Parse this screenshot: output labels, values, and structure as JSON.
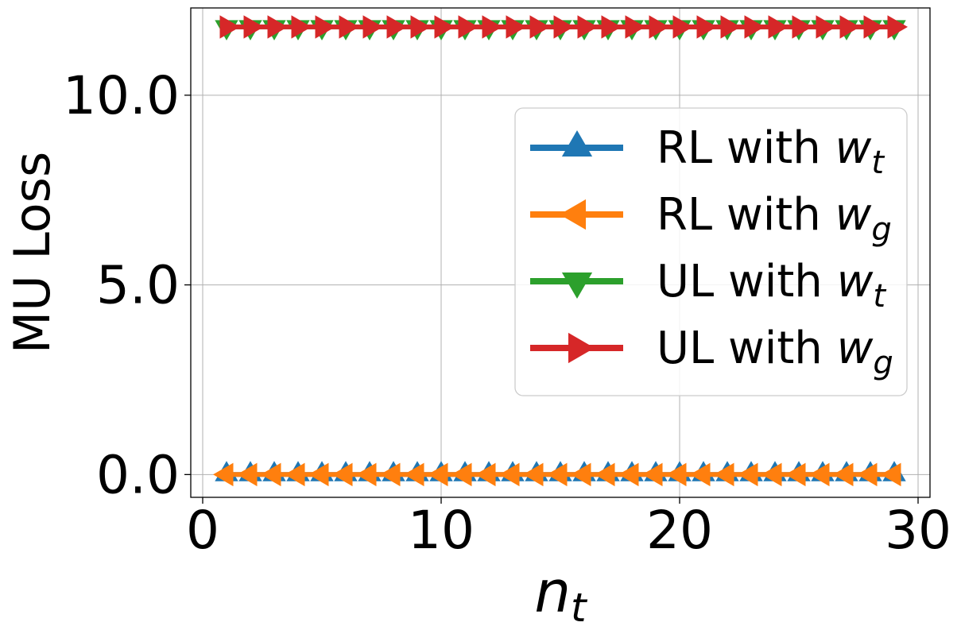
{
  "chart_data": {
    "type": "line",
    "xlabel": "n",
    "xlabel_sub": "t",
    "ylabel": "MU Loss",
    "xlim": [
      -0.5,
      30.5
    ],
    "ylim": [
      -0.6,
      12.3
    ],
    "xticks": [
      0,
      10,
      20,
      30
    ],
    "xtick_labels": [
      "0",
      "10",
      "20",
      "30"
    ],
    "yticks": [
      0.0,
      5.0,
      10.0
    ],
    "ytick_labels": [
      "0.0",
      "5.0",
      "10.0"
    ],
    "grid": true,
    "legend_position": "upper-right",
    "x": [
      1,
      2,
      3,
      4,
      5,
      6,
      7,
      8,
      9,
      10,
      11,
      12,
      13,
      14,
      15,
      16,
      17,
      18,
      19,
      20,
      21,
      22,
      23,
      24,
      25,
      26,
      27,
      28,
      29
    ],
    "series": [
      {
        "name": "RL with ",
        "math": "w",
        "sub": "t",
        "color": "#1f77b4",
        "marker": "triangle-up",
        "values": [
          0,
          0,
          0,
          0,
          0,
          0,
          0,
          0,
          0,
          0,
          0,
          0,
          0,
          0,
          0,
          0,
          0,
          0,
          0,
          0,
          0,
          0,
          0,
          0,
          0,
          0,
          0,
          0,
          0
        ]
      },
      {
        "name": "RL with ",
        "math": "w",
        "sub": "g",
        "color": "#ff7f0e",
        "marker": "triangle-left",
        "values": [
          0,
          0,
          0,
          0,
          0,
          0,
          0,
          0,
          0,
          0,
          0,
          0,
          0,
          0,
          0,
          0,
          0,
          0,
          0,
          0,
          0,
          0,
          0,
          0,
          0,
          0,
          0,
          0,
          0
        ]
      },
      {
        "name": "UL with ",
        "math": "w",
        "sub": "t",
        "color": "#2ca02c",
        "marker": "triangle-down",
        "values": [
          11.8,
          11.8,
          11.8,
          11.8,
          11.8,
          11.8,
          11.8,
          11.8,
          11.8,
          11.8,
          11.8,
          11.8,
          11.8,
          11.8,
          11.8,
          11.8,
          11.8,
          11.8,
          11.8,
          11.8,
          11.8,
          11.8,
          11.8,
          11.8,
          11.8,
          11.8,
          11.8,
          11.8,
          11.8
        ]
      },
      {
        "name": "UL with ",
        "math": "w",
        "sub": "g",
        "color": "#d62728",
        "marker": "triangle-right",
        "values": [
          11.8,
          11.8,
          11.8,
          11.8,
          11.8,
          11.8,
          11.8,
          11.8,
          11.8,
          11.8,
          11.8,
          11.8,
          11.8,
          11.8,
          11.8,
          11.8,
          11.8,
          11.8,
          11.8,
          11.8,
          11.8,
          11.8,
          11.8,
          11.8,
          11.8,
          11.8,
          11.8,
          11.8,
          11.8
        ]
      }
    ]
  }
}
